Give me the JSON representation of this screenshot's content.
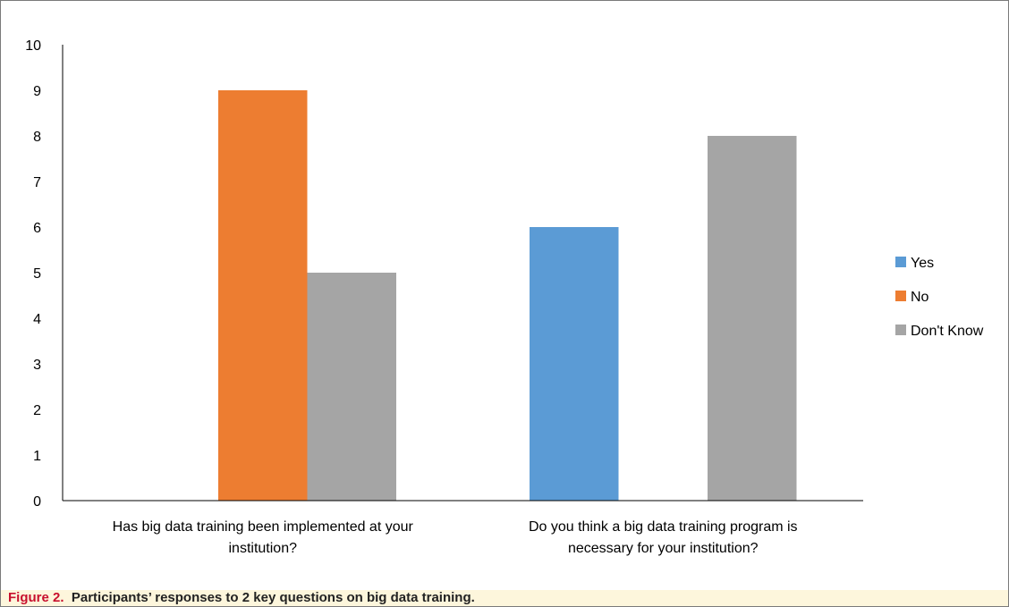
{
  "chart_data": {
    "type": "bar",
    "categories": [
      "Has big data training been implemented at your institution?",
      "Do you think a big data training program is necessary for your institution?"
    ],
    "category_lines": [
      [
        "Has big data training been implemented at your",
        "institution?"
      ],
      [
        "Do you think a big data training program is",
        "necessary for your institution?"
      ]
    ],
    "series": [
      {
        "name": "Yes",
        "color": "#5b9bd5",
        "values": [
          0,
          6
        ]
      },
      {
        "name": "No",
        "color": "#ed7d31",
        "values": [
          9,
          0
        ]
      },
      {
        "name": "Don't Know",
        "color": "#a5a5a5",
        "values": [
          5,
          8
        ]
      }
    ],
    "ylim": [
      0,
      10
    ],
    "yticks": [
      0,
      1,
      2,
      3,
      4,
      5,
      6,
      7,
      8,
      9,
      10
    ],
    "grid": false,
    "legend": "right",
    "title": "",
    "xlabel": "",
    "ylabel": ""
  },
  "caption": {
    "label": "Figure 2.",
    "text": "Participants’ responses to 2 key questions on big data training."
  }
}
